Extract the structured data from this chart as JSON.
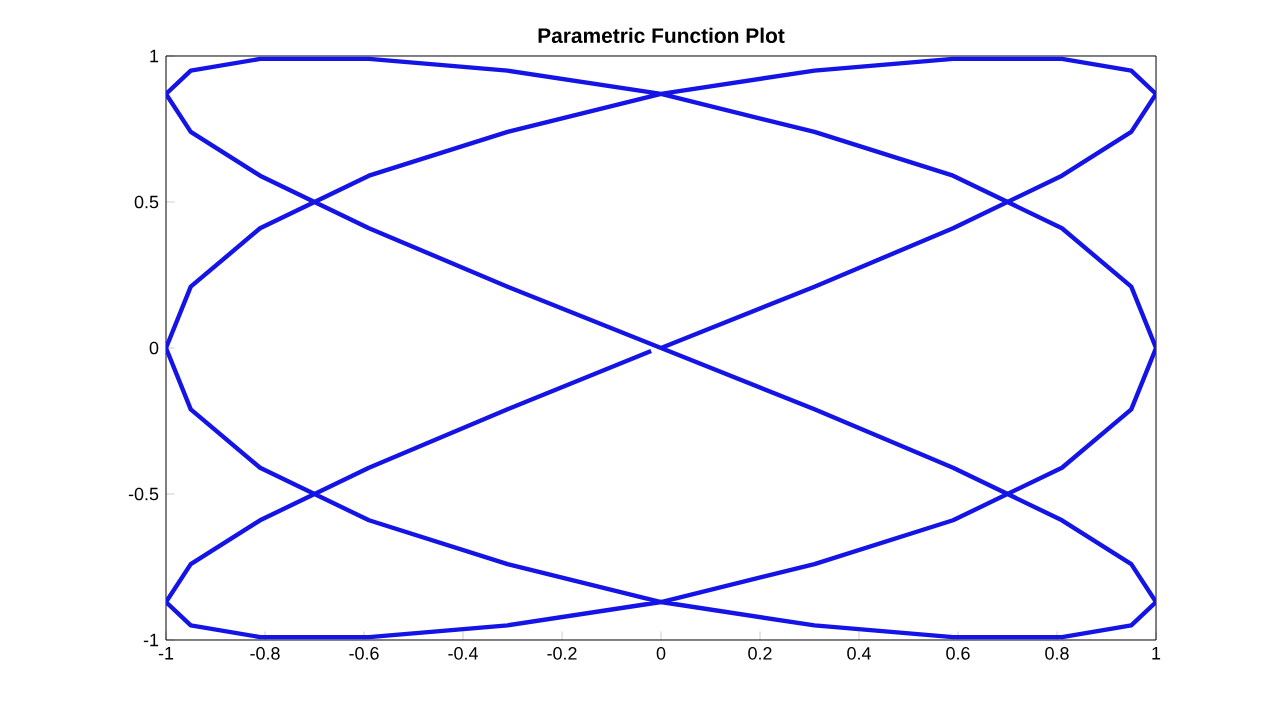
{
  "chart_data": {
    "type": "line",
    "title": "Parametric Function Plot",
    "xlim": [
      -1,
      1
    ],
    "ylim": [
      -1,
      1
    ],
    "xticks": [
      -1,
      -0.8,
      -0.6,
      -0.4,
      -0.2,
      0,
      0.2,
      0.4,
      0.6,
      0.8,
      1
    ],
    "yticks": [
      -1,
      -0.5,
      0,
      0.5,
      1
    ],
    "series": [
      {
        "color": "#1414e6",
        "x": [
          0,
          0.31,
          0.59,
          0.81,
          0.95,
          1,
          0.95,
          0.81,
          0.59,
          0.31,
          0,
          -0.31,
          -0.59,
          -0.81,
          -0.95,
          -1,
          -0.95,
          -0.81,
          -0.59,
          -0.31,
          0,
          0.31,
          0.59,
          0.81,
          0.95,
          1,
          0.95,
          0.81,
          0.59,
          0.31,
          0,
          -0.31,
          -0.59,
          -0.81,
          -0.95,
          -1,
          -0.95,
          -0.81,
          -0.59,
          -0.31,
          0,
          0.31,
          0.59,
          0.81,
          0.95,
          1,
          0.95,
          0.81,
          0.59,
          0.31,
          0,
          -0.31,
          -0.59,
          -0.81,
          -0.95,
          -1,
          -0.95,
          -0.81,
          -0.59,
          -0.31,
          -0.02
        ],
        "values": [
          0,
          0.21,
          0.41,
          0.59,
          0.74,
          0.87,
          0.95,
          0.99,
          0.99,
          0.95,
          0.87,
          0.74,
          0.59,
          0.41,
          0.21,
          0,
          -0.21,
          -0.41,
          -0.59,
          -0.74,
          -0.87,
          -0.95,
          -0.99,
          -0.99,
          -0.95,
          -0.87,
          -0.74,
          -0.59,
          -0.41,
          -0.21,
          0,
          0.21,
          0.41,
          0.59,
          0.74,
          0.87,
          0.95,
          0.99,
          0.99,
          0.95,
          0.87,
          0.74,
          0.59,
          0.41,
          0.21,
          0,
          -0.21,
          -0.41,
          -0.59,
          -0.74,
          -0.87,
          -0.95,
          -0.99,
          -0.99,
          -0.95,
          -0.87,
          -0.74,
          -0.59,
          -0.41,
          -0.21,
          -0.01
        ]
      }
    ]
  }
}
